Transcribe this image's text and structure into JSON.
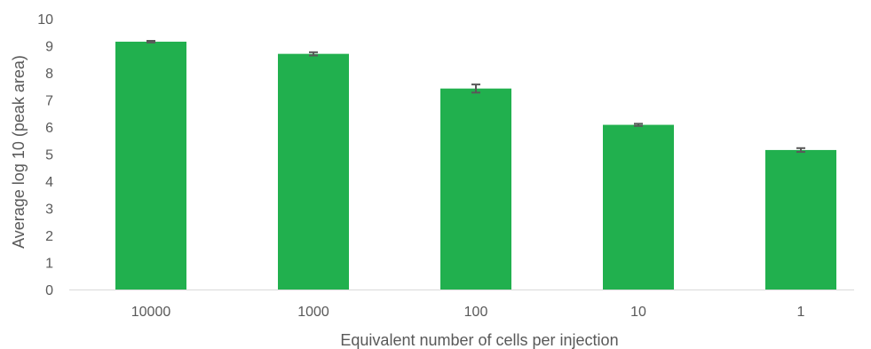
{
  "chart_data": {
    "type": "bar",
    "title": "",
    "xlabel": "Equivalent number of cells per injection",
    "ylabel": "Average log 10 (peak area)",
    "categories": [
      "10000",
      "1000",
      "100",
      "10",
      "1"
    ],
    "values": [
      9.15,
      8.7,
      7.42,
      6.08,
      5.15
    ],
    "error": [
      0.03,
      0.06,
      0.15,
      0.04,
      0.07
    ],
    "ylim": [
      0,
      10
    ],
    "yticks": [
      "0",
      "1",
      "2",
      "3",
      "4",
      "5",
      "6",
      "7",
      "8",
      "9",
      "10"
    ],
    "grid": false,
    "legend": "none",
    "bar_color": "#21b04e",
    "error_color": "#595959",
    "axis_color": "#d9d9d9"
  }
}
